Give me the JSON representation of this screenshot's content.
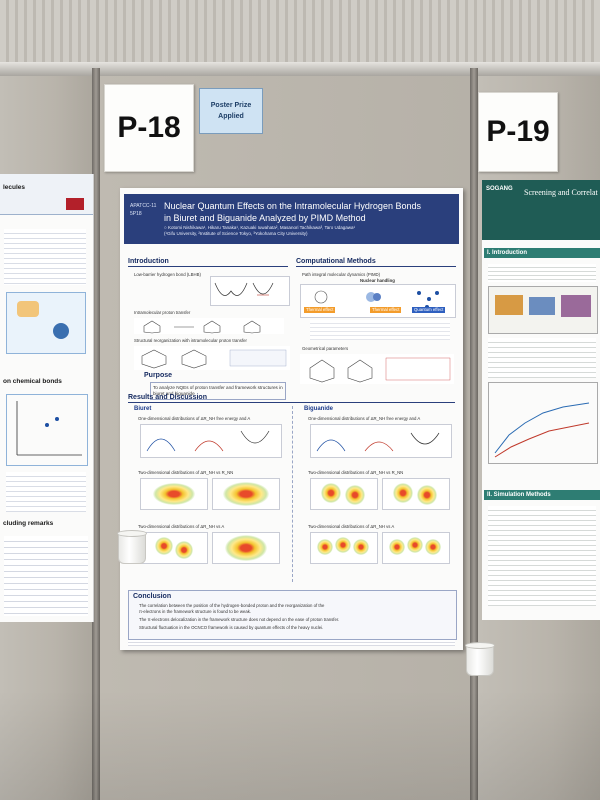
{
  "board_labels": {
    "left": "P-18",
    "right": "P-19"
  },
  "prize_tag": {
    "line1": "Poster Prize",
    "line2": "Applied"
  },
  "poster": {
    "code1": "APATCC-11",
    "code2": "5P18",
    "title_line1": "Nuclear Quantum Effects on the Intramolecular Hydrogen Bonds",
    "title_line2": "in Biuret and Biguanide Analyzed by PIMD Method",
    "authors": "○ Kotomi Nishikawa¹, Hikaru Tanaka¹, Kazuaki Iuwahata², Masanori Tachikawa³, Taro Udagawa¹",
    "affiliations": "(¹Gifu University, ²Institute of Science Tokyo, ³Yokohama City University)",
    "intro_head": "Introduction",
    "intro_items": [
      "Low-barrier hydrogen bond (LBHB)",
      "Intramolecular proton transfer",
      "Structural reorganization with intramolecular proton transfer"
    ],
    "purpose_head": "Purpose",
    "purpose_text": "To analyze NQEs of proton transfer and framework structures in biuret and biguanide",
    "methods_head": "Computational Methods",
    "methods_items": [
      "Path integral molecular dynamics (PIMD)",
      "Geometrical parameters"
    ],
    "methods_sub": "Nuclear handling",
    "methods_tags": [
      "Thermal effect",
      "Thermal effect",
      "Quantum effect"
    ],
    "results_head": "Results and Discussion",
    "biuret_head": "Biuret",
    "biguanide_head": "Biguanide",
    "results_items": [
      "One-dimensional distributions of ΔR_NH free energy and A",
      "Two-dimensional distributions of ΔR_NH vs R_NN",
      "Two-dimensional distributions of ΔR_NH vs A"
    ],
    "conclusion_head": "Conclusion",
    "conclusion_lines": [
      "The correlation between the position of the hydrogen-bonded proton and the reorganization of the",
      "π-electrons in the framework structure is found to be weak.",
      "The π-electrons delocalization in the framework structure does not depend on the ease of proton transfer.",
      "Structural fluctuation in the OCNCO framework is caused by quantum effects of the heavy nuclei."
    ]
  },
  "left_poster": {
    "head1": "lecules",
    "head2": "on chemical bonds",
    "head3": "cluding remarks"
  },
  "right_poster": {
    "university": "SOGANG",
    "title": "Screening and Correlat",
    "sec1": "I. Introduction",
    "sec2": "II. Simulation Methods"
  }
}
